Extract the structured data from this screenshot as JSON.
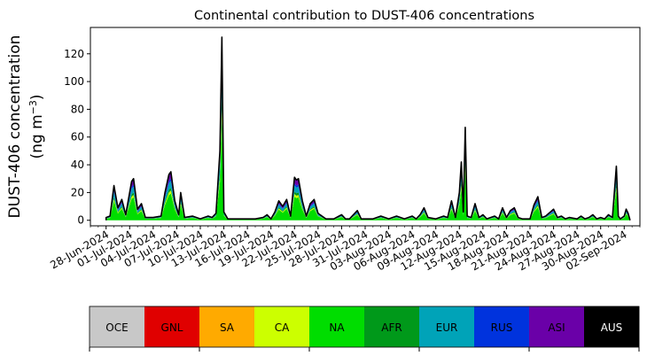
{
  "chart_data": {
    "type": "area",
    "title": "Continental contribution to DUST-406 concentrations",
    "ylabel_line1": "DUST-406 concentration",
    "ylabel_line2": "(ng m",
    "ylabel_sup": "−3",
    "ylabel_close": ")",
    "xlabel": "",
    "stacked": true,
    "ylim": [
      -4,
      139
    ],
    "yticks": [
      0,
      20,
      40,
      60,
      80,
      100,
      120
    ],
    "xlim_dates": [
      "2024-06-26",
      "2024-09-04"
    ],
    "xtick_labels": [
      "28-Jun-2024",
      "01-Jul-2024",
      "04-Jul-2024",
      "07-Jul-2024",
      "10-Jul-2024",
      "13-Jul-2024",
      "16-Jul-2024",
      "19-Jul-2024",
      "22-Jul-2024",
      "25-Jul-2024",
      "28-Jul-2024",
      "31-Jul-2024",
      "03-Aug-2024",
      "06-Aug-2024",
      "09-Aug-2024",
      "12-Aug-2024",
      "15-Aug-2024",
      "18-Aug-2024",
      "21-Aug-2024",
      "24-Aug-2024",
      "27-Aug-2024",
      "30-Aug-2024",
      "02-Sep-2024"
    ],
    "xtick_dates": [
      "2024-06-28",
      "2024-07-01",
      "2024-07-04",
      "2024-07-07",
      "2024-07-10",
      "2024-07-13",
      "2024-07-16",
      "2024-07-19",
      "2024-07-22",
      "2024-07-25",
      "2024-07-28",
      "2024-07-31",
      "2024-08-03",
      "2024-08-06",
      "2024-08-09",
      "2024-08-12",
      "2024-08-15",
      "2024-08-18",
      "2024-08-21",
      "2024-08-24",
      "2024-08-27",
      "2024-08-30",
      "2024-09-02"
    ],
    "legend_placement": "bottom (color bar)",
    "series": [
      {
        "name": "OCE",
        "color": "#c8c8c8"
      },
      {
        "name": "GNL",
        "color": "#e00000"
      },
      {
        "name": "SA",
        "color": "#ffaa00"
      },
      {
        "name": "CA",
        "color": "#ccff00"
      },
      {
        "name": "NA",
        "color": "#00dd00"
      },
      {
        "name": "AFR",
        "color": "#00991a"
      },
      {
        "name": "EUR",
        "color": "#00a3b8"
      },
      {
        "name": "RUS",
        "color": "#0033dd"
      },
      {
        "name": "ASI",
        "color": "#6a00a8"
      },
      {
        "name": "AUS",
        "color": "#000000"
      }
    ],
    "total_peaks": [
      {
        "date": "2024-06-28T00:00",
        "value": 2
      },
      {
        "date": "2024-06-28T12:00",
        "value": 3
      },
      {
        "date": "2024-06-29T00:00",
        "value": 25
      },
      {
        "date": "2024-06-29T12:00",
        "value": 9
      },
      {
        "date": "2024-06-30T00:00",
        "value": 15
      },
      {
        "date": "2024-06-30T12:00",
        "value": 4
      },
      {
        "date": "2024-07-01T06:00",
        "value": 28
      },
      {
        "date": "2024-07-01T12:00",
        "value": 30
      },
      {
        "date": "2024-07-02T00:00",
        "value": 8
      },
      {
        "date": "2024-07-02T12:00",
        "value": 12
      },
      {
        "date": "2024-07-03T00:00",
        "value": 2
      },
      {
        "date": "2024-07-04T00:00",
        "value": 2
      },
      {
        "date": "2024-07-05T00:00",
        "value": 3
      },
      {
        "date": "2024-07-05T12:00",
        "value": 20
      },
      {
        "date": "2024-07-06T00:00",
        "value": 33
      },
      {
        "date": "2024-07-06T06:00",
        "value": 35
      },
      {
        "date": "2024-07-06T18:00",
        "value": 14
      },
      {
        "date": "2024-07-07T06:00",
        "value": 4
      },
      {
        "date": "2024-07-07T12:00",
        "value": 20
      },
      {
        "date": "2024-07-08T00:00",
        "value": 2
      },
      {
        "date": "2024-07-09T00:00",
        "value": 3
      },
      {
        "date": "2024-07-10T00:00",
        "value": 1
      },
      {
        "date": "2024-07-11T00:00",
        "value": 3
      },
      {
        "date": "2024-07-11T12:00",
        "value": 2
      },
      {
        "date": "2024-07-12T00:00",
        "value": 5
      },
      {
        "date": "2024-07-12T12:00",
        "value": 50
      },
      {
        "date": "2024-07-12T18:00",
        "value": 132
      },
      {
        "date": "2024-07-13T00:00",
        "value": 6
      },
      {
        "date": "2024-07-13T12:00",
        "value": 1
      },
      {
        "date": "2024-07-15T00:00",
        "value": 1
      },
      {
        "date": "2024-07-16T00:00",
        "value": 1
      },
      {
        "date": "2024-07-17T00:00",
        "value": 1
      },
      {
        "date": "2024-07-18T00:00",
        "value": 2
      },
      {
        "date": "2024-07-18T12:00",
        "value": 4
      },
      {
        "date": "2024-07-19T00:00",
        "value": 1
      },
      {
        "date": "2024-07-19T12:00",
        "value": 6
      },
      {
        "date": "2024-07-20T00:00",
        "value": 14
      },
      {
        "date": "2024-07-20T12:00",
        "value": 10
      },
      {
        "date": "2024-07-21T00:00",
        "value": 15
      },
      {
        "date": "2024-07-21T12:00",
        "value": 3
      },
      {
        "date": "2024-07-22T00:00",
        "value": 31
      },
      {
        "date": "2024-07-22T06:00",
        "value": 29
      },
      {
        "date": "2024-07-22T12:00",
        "value": 30
      },
      {
        "date": "2024-07-23T00:00",
        "value": 14
      },
      {
        "date": "2024-07-23T12:00",
        "value": 3
      },
      {
        "date": "2024-07-24T00:00",
        "value": 12
      },
      {
        "date": "2024-07-24T12:00",
        "value": 15
      },
      {
        "date": "2024-07-25T00:00",
        "value": 5
      },
      {
        "date": "2024-07-26T00:00",
        "value": 1
      },
      {
        "date": "2024-07-27T00:00",
        "value": 1
      },
      {
        "date": "2024-07-28T00:00",
        "value": 4
      },
      {
        "date": "2024-07-28T12:00",
        "value": 1
      },
      {
        "date": "2024-07-29T00:00",
        "value": 1
      },
      {
        "date": "2024-07-30T00:00",
        "value": 7
      },
      {
        "date": "2024-07-30T12:00",
        "value": 1
      },
      {
        "date": "2024-08-01T00:00",
        "value": 1
      },
      {
        "date": "2024-08-02T00:00",
        "value": 3
      },
      {
        "date": "2024-08-03T00:00",
        "value": 1
      },
      {
        "date": "2024-08-04T00:00",
        "value": 3
      },
      {
        "date": "2024-08-05T00:00",
        "value": 1
      },
      {
        "date": "2024-08-06T00:00",
        "value": 3
      },
      {
        "date": "2024-08-06T12:00",
        "value": 1
      },
      {
        "date": "2024-08-07T00:00",
        "value": 4
      },
      {
        "date": "2024-08-07T12:00",
        "value": 9
      },
      {
        "date": "2024-08-08T00:00",
        "value": 2
      },
      {
        "date": "2024-08-09T00:00",
        "value": 1
      },
      {
        "date": "2024-08-10T00:00",
        "value": 3
      },
      {
        "date": "2024-08-10T12:00",
        "value": 2
      },
      {
        "date": "2024-08-11T00:00",
        "value": 14
      },
      {
        "date": "2024-08-11T12:00",
        "value": 2
      },
      {
        "date": "2024-08-12T00:00",
        "value": 20
      },
      {
        "date": "2024-08-12T06:00",
        "value": 42
      },
      {
        "date": "2024-08-12T12:00",
        "value": 6
      },
      {
        "date": "2024-08-12T18:00",
        "value": 67
      },
      {
        "date": "2024-08-13T00:00",
        "value": 3
      },
      {
        "date": "2024-08-13T12:00",
        "value": 2
      },
      {
        "date": "2024-08-14T00:00",
        "value": 12
      },
      {
        "date": "2024-08-14T12:00",
        "value": 2
      },
      {
        "date": "2024-08-15T00:00",
        "value": 4
      },
      {
        "date": "2024-08-15T12:00",
        "value": 1
      },
      {
        "date": "2024-08-16T12:00",
        "value": 3
      },
      {
        "date": "2024-08-17T00:00",
        "value": 1
      },
      {
        "date": "2024-08-17T12:00",
        "value": 9
      },
      {
        "date": "2024-08-18T00:00",
        "value": 2
      },
      {
        "date": "2024-08-18T12:00",
        "value": 7
      },
      {
        "date": "2024-08-19T00:00",
        "value": 9
      },
      {
        "date": "2024-08-19T12:00",
        "value": 2
      },
      {
        "date": "2024-08-20T00:00",
        "value": 1
      },
      {
        "date": "2024-08-21T00:00",
        "value": 1
      },
      {
        "date": "2024-08-21T12:00",
        "value": 11
      },
      {
        "date": "2024-08-22T00:00",
        "value": 17
      },
      {
        "date": "2024-08-22T12:00",
        "value": 2
      },
      {
        "date": "2024-08-23T00:00",
        "value": 3
      },
      {
        "date": "2024-08-24T00:00",
        "value": 8
      },
      {
        "date": "2024-08-24T12:00",
        "value": 2
      },
      {
        "date": "2024-08-25T00:00",
        "value": 3
      },
      {
        "date": "2024-08-25T12:00",
        "value": 1
      },
      {
        "date": "2024-08-26T00:00",
        "value": 2
      },
      {
        "date": "2024-08-27T00:00",
        "value": 1
      },
      {
        "date": "2024-08-27T12:00",
        "value": 3
      },
      {
        "date": "2024-08-28T00:00",
        "value": 1
      },
      {
        "date": "2024-08-28T12:00",
        "value": 2
      },
      {
        "date": "2024-08-29T00:00",
        "value": 4
      },
      {
        "date": "2024-08-29T12:00",
        "value": 1
      },
      {
        "date": "2024-08-30T00:00",
        "value": 2
      },
      {
        "date": "2024-08-30T12:00",
        "value": 1
      },
      {
        "date": "2024-08-31T00:00",
        "value": 4
      },
      {
        "date": "2024-08-31T12:00",
        "value": 2
      },
      {
        "date": "2024-09-01T00:00",
        "value": 39
      },
      {
        "date": "2024-09-01T06:00",
        "value": 3
      },
      {
        "date": "2024-09-01T12:00",
        "value": 1
      },
      {
        "date": "2024-09-02T00:00",
        "value": 3
      },
      {
        "date": "2024-09-02T06:00",
        "value": 8
      },
      {
        "date": "2024-09-02T12:00",
        "value": 5
      }
    ]
  }
}
